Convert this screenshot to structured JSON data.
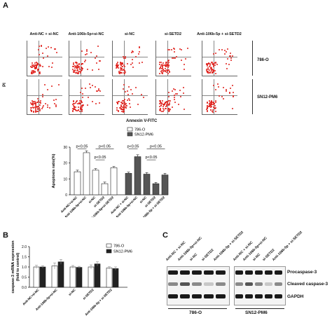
{
  "panel_a": {
    "label": "A",
    "columns": [
      "Anti-NC + si-NC",
      "Anti-106b-5p+si-NC",
      "si-NC",
      "si-SETD2",
      "Anti-106b-5p + si-SETD2"
    ],
    "rows": [
      "786-O",
      "SN12-PM6"
    ],
    "y_axis_label": "PI",
    "x_axis_label": "Annexin V-FITC",
    "flow_tick": "10^0"
  },
  "chart_apoptosis": {
    "type": "bar",
    "ylabel": "Apoptosis ratio(%)",
    "ylim": [
      0,
      30
    ],
    "yticks": [
      0,
      10,
      20,
      30
    ],
    "legend": [
      "786-O",
      "SN12-PM6"
    ],
    "legend_colors": [
      "#ffffff",
      "#555555"
    ],
    "categories": [
      "Anti-NC+si-NC",
      "Anti-106b-5p+si-NC",
      "si-NC",
      "si-SETD2",
      "Anti-106b-5p+si-SETD2",
      "Anti-NC + si-NC",
      "Anti-106b-5p+si-NC",
      "si-NC",
      "si-SETD2",
      "Anti-106b-5p + si-SETD2"
    ],
    "series": [
      {
        "name": "786-O",
        "indices": [
          0,
          1,
          2,
          3,
          4
        ],
        "values": [
          14.5,
          26.5,
          15.5,
          7,
          17
        ],
        "errors": [
          1,
          1.2,
          1,
          1,
          0.8
        ]
      },
      {
        "name": "SN12-PM6",
        "indices": [
          5,
          6,
          7,
          8,
          9
        ],
        "values": [
          13.5,
          24,
          13,
          7,
          12.5
        ],
        "errors": [
          0.8,
          1.2,
          1,
          0.8,
          1
        ]
      }
    ],
    "significance": [
      "p<0.05",
      "p<0.05",
      "p<0.05",
      "p<0.05",
      "p<0.05",
      "p<0.05"
    ]
  },
  "panel_b": {
    "label": "B",
    "chart_data": {
      "type": "bar",
      "ylabel": "caspase-3 mRNA expression\n(fold to control)",
      "ylim": [
        0,
        2.0
      ],
      "yticks": [
        "0.0",
        "0.5",
        "1.0",
        "1.5",
        "2.0"
      ],
      "categories": [
        "Anti-NC+si-NC",
        "Anti-106b-5p+si-NC",
        "si-NC",
        "si-SETD2",
        "Anti-106b-5p + si-SETD2"
      ],
      "series": [
        {
          "name": "786-O",
          "values": [
            1.0,
            1.05,
            1.0,
            1.0,
            0.95
          ],
          "errors": [
            0.08,
            0.15,
            0.07,
            0.1,
            0.06
          ]
        },
        {
          "name": "SN12-PM6",
          "values": [
            1.0,
            1.25,
            0.98,
            1.15,
            0.92
          ],
          "errors": [
            0.06,
            0.12,
            0.05,
            0.1,
            0.08
          ]
        }
      ],
      "legend_colors": [
        "#ffffff",
        "#222222"
      ]
    }
  },
  "panel_c": {
    "label": "C",
    "lanes_left": [
      "Anti-NC + si-NC",
      "Anti-106b-5p+si-NC",
      "si-NC",
      "si-SETD2",
      "Anti-106b-5p + si-SETD2"
    ],
    "lanes_right": [
      "Anti-NC + si-NC",
      "Anti-106b-5p+si-NC",
      "si-NC",
      "si-SETD2",
      "Anti-106b-5p + si-SETD2"
    ],
    "bands": [
      "Procaspase-3",
      "Cleaved caspase-3",
      "GAPDH"
    ],
    "cell_lines": [
      "786-O",
      "SN12-PM6"
    ]
  }
}
